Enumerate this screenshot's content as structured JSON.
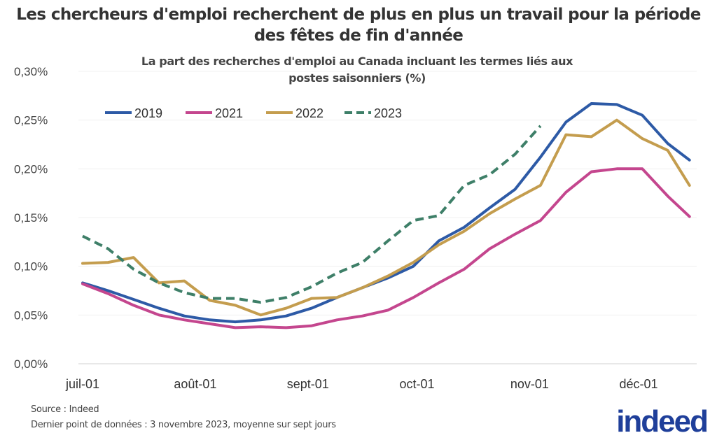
{
  "chart_data": {
    "type": "line",
    "title": "Les chercheurs d'emploi recherchent de plus en plus un travail pour la période des fêtes de fin d'année",
    "subtitle": "La part des recherches d'emploi au Canada incluant les termes liés aux postes saisonniers (%)",
    "xlabel": "",
    "ylabel": "",
    "ylim": [
      0,
      0.3
    ],
    "y_ticks": [
      "0,00%",
      "0,05%",
      "0,10%",
      "0,15%",
      "0,20%",
      "0,25%",
      "0,30%"
    ],
    "x_ticks": [
      {
        "label": "juil-01",
        "date": "07-01"
      },
      {
        "label": "août-01",
        "date": "08-01"
      },
      {
        "label": "sept-01",
        "date": "09-01"
      },
      {
        "label": "oct-01",
        "date": "10-01"
      },
      {
        "label": "nov-01",
        "date": "11-01"
      },
      {
        "label": "déc-01",
        "date": "12-01"
      }
    ],
    "grid": true,
    "legend_position": "top-left",
    "x": [
      "07-01",
      "07-08",
      "07-15",
      "07-22",
      "07-29",
      "08-05",
      "08-12",
      "08-19",
      "08-26",
      "09-02",
      "09-09",
      "09-16",
      "09-23",
      "09-30",
      "10-07",
      "10-14",
      "10-21",
      "10-28",
      "11-04",
      "11-11",
      "11-18",
      "11-25",
      "12-02",
      "12-09",
      "12-15"
    ],
    "series": [
      {
        "name": "2019",
        "color": "#2d5aa6",
        "dashed": false,
        "values": [
          0.083,
          0.075,
          0.066,
          0.057,
          0.049,
          0.045,
          0.043,
          0.045,
          0.049,
          0.057,
          0.068,
          0.078,
          0.088,
          0.1,
          0.126,
          0.14,
          0.16,
          0.179,
          0.212,
          0.248,
          0.267,
          0.266,
          0.255,
          0.226,
          0.209
        ]
      },
      {
        "name": "2021",
        "color": "#c4468e",
        "dashed": false,
        "values": [
          0.082,
          0.072,
          0.06,
          0.05,
          0.045,
          0.041,
          0.037,
          0.038,
          0.037,
          0.039,
          0.045,
          0.049,
          0.055,
          0.068,
          0.083,
          0.097,
          0.118,
          0.133,
          0.147,
          0.176,
          0.197,
          0.2,
          0.2,
          0.172,
          0.151
        ]
      },
      {
        "name": "2022",
        "color": "#c49d4e",
        "dashed": false,
        "values": [
          0.103,
          0.104,
          0.109,
          0.083,
          0.085,
          0.065,
          0.06,
          0.05,
          0.057,
          0.067,
          0.068,
          0.078,
          0.09,
          0.104,
          0.122,
          0.136,
          0.154,
          0.169,
          0.183,
          0.235,
          0.233,
          0.25,
          0.231,
          0.219,
          0.183
        ]
      },
      {
        "name": "2023",
        "color": "#3e7f68",
        "dashed": true,
        "values": [
          0.131,
          0.118,
          0.097,
          0.083,
          0.073,
          0.067,
          0.067,
          0.063,
          0.068,
          0.079,
          0.093,
          0.104,
          0.126,
          0.147,
          0.152,
          0.183,
          0.194,
          0.215,
          0.244,
          null,
          null,
          null,
          null,
          null,
          null
        ]
      }
    ]
  },
  "footer": {
    "source": "Source : Indeed",
    "note": "Dernier point de données : 3 novembre 2023, moyenne sur sept jours"
  },
  "logo": "indeed"
}
